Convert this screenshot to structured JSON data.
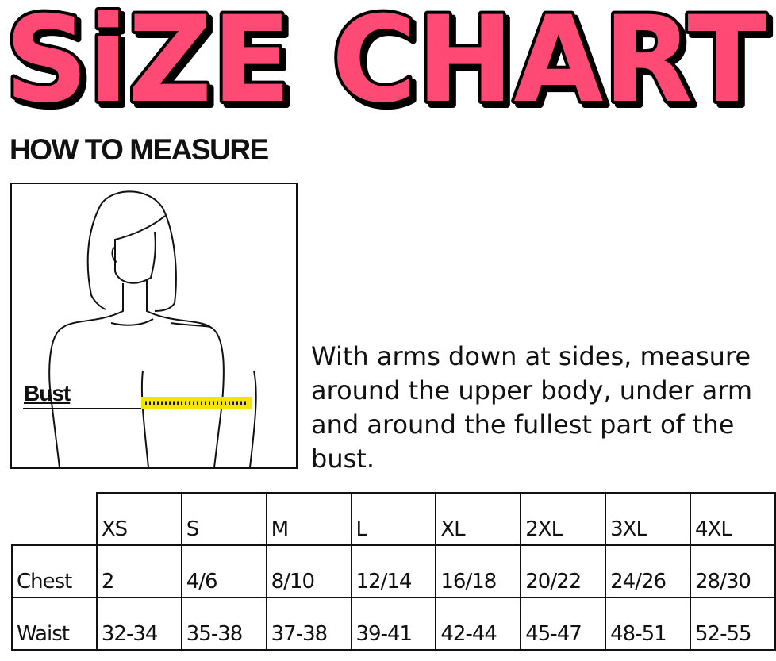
{
  "title": "SiZE CHART",
  "colors": {
    "title_fill": "#ff4a75",
    "title_outline": "#000000",
    "tape": "#f5e400"
  },
  "how_to_measure": {
    "heading": "HOW TO MEASURE",
    "bust_label": "Bust",
    "instructions": "With arms down at sides, measure around the upper body, under arm and around the fullest part of the bust."
  },
  "size_table": {
    "headers": [
      "XS",
      "S",
      "M",
      "L",
      "XL",
      "2XL",
      "3XL",
      "4XL"
    ],
    "rows": [
      {
        "label": "Chest",
        "values": [
          "2",
          "4/6",
          "8/10",
          "12/14",
          "16/18",
          "20/22",
          "24/26",
          "28/30"
        ]
      },
      {
        "label": "Waist",
        "values": [
          "32-34",
          "35-38",
          "37-38",
          "39-41",
          "42-44",
          "45-47",
          "48-51",
          "52-55"
        ]
      }
    ]
  }
}
